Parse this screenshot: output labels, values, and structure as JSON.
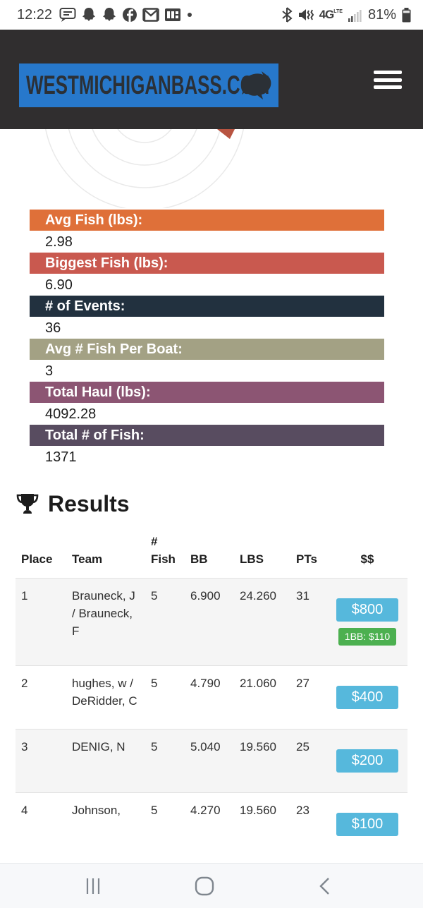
{
  "colors": {
    "header_bg": "#302e2f",
    "logo_bg": "#2778cb",
    "money_button": "#56b8dc",
    "bonus_badge": "#4cb050",
    "row_stripe": "#f5f5f5",
    "chart_wedge": "#b85441"
  },
  "status_bar": {
    "time": "12:22",
    "left_icons": [
      "chat-icon",
      "snapchat-icon",
      "snapchat-icon",
      "facebook-icon",
      "gmail-icon",
      "office-icon",
      "notification-dot"
    ],
    "right_icons": [
      "bluetooth-icon",
      "mute-icon",
      "network-4g-lte",
      "signal-icon",
      "battery-icon"
    ],
    "network": "4G",
    "network_sub": "LTE",
    "battery_percent": "81%"
  },
  "header": {
    "logo_text": "WESTMICHIGANBASS.COM",
    "menu_icon": "hamburger-menu"
  },
  "stats": [
    {
      "label": "Avg Fish (lbs):",
      "value": "2.98",
      "color": "#df7039"
    },
    {
      "label": "Biggest Fish (lbs):",
      "value": "6.90",
      "color": "#c9594f"
    },
    {
      "label": "# of Events:",
      "value": "36",
      "color": "#22313f"
    },
    {
      "label": "Avg # Fish Per Boat:",
      "value": "3",
      "color": "#a3a184"
    },
    {
      "label": "Total Haul (lbs):",
      "value": "4092.28",
      "color": "#8c5573"
    },
    {
      "label": "Total # of Fish:",
      "value": "1371",
      "color": "#584c60"
    }
  ],
  "results": {
    "title": "Results",
    "columns": [
      {
        "key": "place",
        "label": "Place"
      },
      {
        "key": "team",
        "label": "Team"
      },
      {
        "key": "fish",
        "label": "# Fish"
      },
      {
        "key": "bb",
        "label": "BB"
      },
      {
        "key": "lbs",
        "label": "LBS"
      },
      {
        "key": "pts",
        "label": "PTs"
      },
      {
        "key": "money",
        "label": "$$"
      }
    ],
    "rows": [
      {
        "place": "1",
        "team": "Brauneck, J / Brauneck, F",
        "fish": "5",
        "bb": "6.900",
        "lbs": "24.260",
        "pts": "31",
        "money": "$800",
        "bonus": "1BB: $110"
      },
      {
        "place": "2",
        "team": "hughes, w / DeRidder, C",
        "fish": "5",
        "bb": "4.790",
        "lbs": "21.060",
        "pts": "27",
        "money": "$400"
      },
      {
        "place": "3",
        "team": "DENIG, N",
        "fish": "5",
        "bb": "5.040",
        "lbs": "19.560",
        "pts": "25",
        "money": "$200"
      },
      {
        "place": "4",
        "team": "Johnson,",
        "fish": "5",
        "bb": "4.270",
        "lbs": "19.560",
        "pts": "23",
        "money": "$100"
      }
    ]
  },
  "nav_bar": {
    "buttons": [
      "recent-apps",
      "home",
      "back"
    ]
  }
}
